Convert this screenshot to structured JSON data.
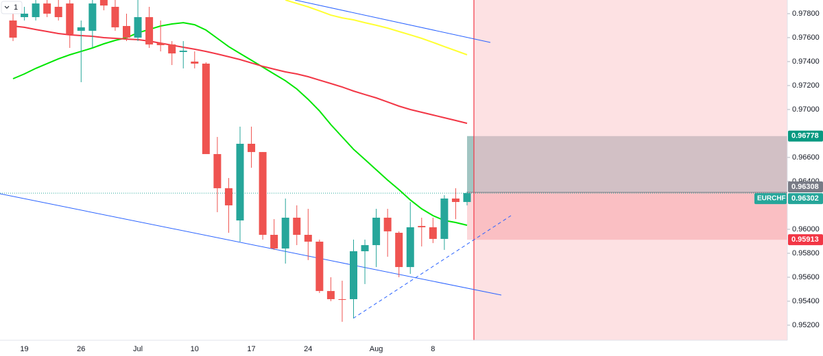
{
  "chart_data": {
    "type": "candlestick",
    "symbol": "EURCHF",
    "toolbar_label": "1",
    "categories": [
      null,
      "19",
      null,
      null,
      null,
      null,
      "26",
      null,
      null,
      null,
      null,
      "Jul",
      null,
      null,
      null,
      null,
      "10",
      null,
      null,
      null,
      null,
      "17",
      null,
      null,
      null,
      null,
      "24",
      null,
      null,
      null,
      null,
      null,
      "Aug",
      null,
      null,
      null,
      null,
      "8",
      null,
      null,
      null
    ],
    "open": [
      0.97743,
      0.97771,
      0.97771,
      0.97885,
      0.97857,
      0.97885,
      0.97657,
      0.97657,
      0.97914,
      0.97857,
      0.97697,
      0.976,
      0.97771,
      0.97554,
      0.97543,
      0.9748,
      0.974,
      0.97383,
      0.96628,
      0.96343,
      0.96074,
      0.96714,
      0.96645,
      0.95954,
      0.9584,
      0.96097,
      0.95954,
      0.95897,
      0.95485,
      0.95417,
      0.95417,
      0.95817,
      0.95868,
      0.96097,
      0.95971,
      0.95685,
      0.96028,
      0.96017,
      0.9592,
      0.96257,
      0.96228
    ],
    "high": [
      0.978,
      0.97857,
      0.97914,
      0.97914,
      0.97914,
      0.97914,
      0.97743,
      0.97914,
      0.97914,
      0.97914,
      0.978,
      0.97914,
      0.97857,
      0.97743,
      0.97571,
      0.97571,
      0.97485,
      0.97394,
      0.96771,
      0.96428,
      0.96857,
      0.96857,
      0.96645,
      0.96085,
      0.96257,
      0.962,
      0.96171,
      0.95914,
      0.956,
      0.95571,
      0.95914,
      0.95914,
      0.96171,
      0.96171,
      0.95983,
      0.96228,
      0.96097,
      0.96097,
      0.96285,
      0.96343,
      0.96314
    ],
    "low": [
      0.97571,
      0.97743,
      0.97743,
      0.97771,
      0.97743,
      0.97514,
      0.97228,
      0.97514,
      0.97828,
      0.97657,
      0.97571,
      0.97571,
      0.97514,
      0.97485,
      0.97371,
      0.97343,
      0.97343,
      0.96628,
      0.96143,
      0.95971,
      0.95897,
      0.96514,
      0.95914,
      0.95828,
      0.95714,
      0.95868,
      0.95743,
      0.95468,
      0.954,
      0.95228,
      0.95257,
      0.95543,
      0.95685,
      0.95771,
      0.956,
      0.95628,
      0.95857,
      0.95885,
      0.95828,
      0.96085,
      0.962
    ],
    "close": [
      0.976,
      0.978,
      0.97885,
      0.978,
      0.97771,
      0.97628,
      0.97686,
      0.97885,
      0.97868,
      0.97686,
      0.976,
      0.97771,
      0.97543,
      0.97537,
      0.97468,
      0.97491,
      0.97383,
      0.96628,
      0.96343,
      0.962,
      0.96714,
      0.96645,
      0.95954,
      0.9584,
      0.96097,
      0.95954,
      0.95897,
      0.95485,
      0.95417,
      0.95411,
      0.95817,
      0.95868,
      0.96097,
      0.95983,
      0.95685,
      0.96017,
      0.96017,
      0.9592,
      0.96257,
      0.96228,
      0.96302
    ],
    "up_color": "#26a69a",
    "down_color": "#ef5350",
    "moving_averages": [
      {
        "color": "#00e600",
        "values": [
          0.97257,
          0.97297,
          0.97343,
          0.97383,
          0.97423,
          0.97457,
          0.97485,
          0.97514,
          0.97548,
          0.97577,
          0.976,
          0.9764,
          0.97668,
          0.97697,
          0.97714,
          0.97725,
          0.97708,
          0.97663,
          0.97594,
          0.97525,
          0.97468,
          0.97411,
          0.97354,
          0.97297,
          0.9724,
          0.97171,
          0.97085,
          0.96988,
          0.96874,
          0.96771,
          0.96668,
          0.96583,
          0.96497,
          0.96411,
          0.96331,
          0.96245,
          0.96171,
          0.96114,
          0.96074,
          0.96057,
          0.96034
        ]
      },
      {
        "color": "#f23645",
        "values": [
          0.97697,
          0.97686,
          0.97668,
          0.97651,
          0.97634,
          0.97623,
          0.97617,
          0.97611,
          0.976,
          0.97594,
          0.97588,
          0.97583,
          0.97571,
          0.97554,
          0.97537,
          0.9752,
          0.97503,
          0.97485,
          0.97463,
          0.9744,
          0.97417,
          0.97389,
          0.9736,
          0.97337,
          0.97314,
          0.97297,
          0.97274,
          0.97245,
          0.97217,
          0.97188,
          0.97154,
          0.97125,
          0.97097,
          0.97063,
          0.97028,
          0.97,
          0.96977,
          0.96954,
          0.96931,
          0.96908,
          0.96885
        ]
      },
      {
        "color": "#ffff33",
        "values": [
          null,
          null,
          null,
          null,
          null,
          null,
          null,
          null,
          null,
          null,
          null,
          null,
          null,
          null,
          null,
          null,
          null,
          null,
          null,
          null,
          null,
          null,
          null,
          null,
          0.97914,
          0.97885,
          0.97857,
          0.97823,
          0.97788,
          0.97765,
          0.97748,
          0.97725,
          0.97703,
          0.9768,
          0.97651,
          0.97623,
          0.97594,
          0.9756,
          0.97525,
          0.97491,
          0.97457
        ]
      }
    ],
    "last_price": 0.96302,
    "position": {
      "target": 0.96778,
      "entry": 0.96308,
      "stop": 0.95913
    },
    "ylim": [
      0.95074,
      0.97914
    ],
    "yticks": [
      {
        "value": 0.952,
        "label": "0.95200"
      },
      {
        "value": 0.954,
        "label": "0.95400"
      },
      {
        "value": 0.956,
        "label": "0.95600"
      },
      {
        "value": 0.958,
        "label": "0.95800"
      },
      {
        "value": 0.96,
        "label": "0.96000"
      },
      {
        "value": 0.964,
        "label": "0.96400"
      },
      {
        "value": 0.966,
        "label": "0.96600"
      },
      {
        "value": 0.97,
        "label": "0.97000"
      },
      {
        "value": 0.972,
        "label": "0.97200"
      },
      {
        "value": 0.974,
        "label": "0.97400"
      },
      {
        "value": 0.976,
        "label": "0.97600"
      },
      {
        "value": 0.978,
        "label": "0.97800"
      }
    ],
    "grid": false
  }
}
